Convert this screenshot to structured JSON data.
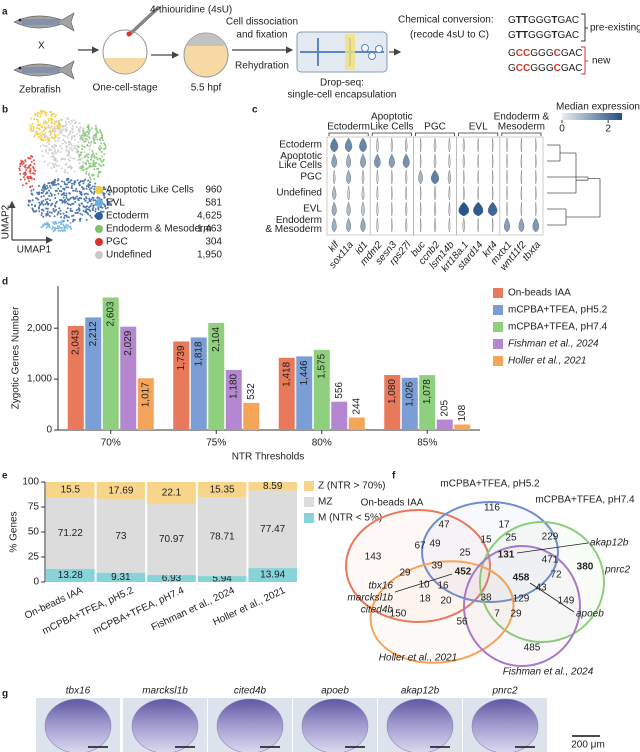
{
  "panel_labels": [
    "a",
    "b",
    "c",
    "d",
    "e",
    "f",
    "g"
  ],
  "workflow": {
    "reagent": "4-thiouridine (4sU)",
    "organism": "Zebrafish",
    "cross": "X",
    "stage1": "One-cell-stage",
    "stage2": "5.5 hpf",
    "step1": [
      "Cell dissociation",
      "and fixation"
    ],
    "step2": "Rehydration",
    "step3": [
      "Drop-seq:",
      "single-cell encapsulation"
    ],
    "step4": [
      "Chemical conversion:",
      "(recode 4sU to C)"
    ],
    "pre_existing": {
      "label": "pre-existing",
      "sequences": [
        "GTTGGGTGAC",
        "GTTGGGTGAC"
      ]
    },
    "new": {
      "label": "new",
      "sequences": [
        "GCCGGGCGAC",
        "GCCGGGCGAC"
      ]
    }
  },
  "umap": {
    "x_label": "UMAP1",
    "y_label": "UMAP2",
    "clusters": [
      {
        "name": "Apoptotic Like Cells",
        "count": "960",
        "color": "#f2cc3a"
      },
      {
        "name": "EVL",
        "count": "581",
        "color": "#6ab0de"
      },
      {
        "name": "Ectoderm",
        "count": "4,625",
        "color": "#2f5f9e"
      },
      {
        "name": "Endoderm & Mesoderm",
        "count": "1,463",
        "color": "#7cc46e"
      },
      {
        "name": "PGC",
        "count": "304",
        "color": "#d7342b"
      },
      {
        "name": "Undefined",
        "count": "1,950",
        "color": "#c8c8c8"
      }
    ]
  },
  "chart_data": [
    {
      "type": "violin",
      "colorbar_title": "Median expression",
      "colorbar_lim": [
        0,
        2.6
      ],
      "colorbar_ticks": [
        0,
        2
      ],
      "colors": [
        "#ececec",
        "#1d4f86"
      ],
      "groups": [
        [
          "Ectoderm"
        ],
        [
          "Apoptotic",
          "Like Cells"
        ],
        [
          "PGC"
        ],
        [
          "EVL"
        ],
        [
          "Endoderm &",
          "Mesoderm"
        ]
      ],
      "rows": [
        [
          "Ectoderm"
        ],
        [
          "Apoptotic",
          "Like Cells"
        ],
        [
          "PGC"
        ],
        [
          "Undefined"
        ],
        [
          "EVL"
        ],
        [
          "Endoderm",
          "& Mesoderm"
        ]
      ],
      "categories": [
        "klf",
        "sox11a",
        "id1",
        "mdm2",
        "sesn3",
        "rps27l",
        "buc",
        "ccnb2",
        "lsm14b",
        "krt18a.1",
        "stard14",
        "krt4",
        "mxtx1",
        "wnt11f2",
        "tbxta"
      ],
      "values": [
        [
          1.8,
          1.6,
          1.7,
          0.3,
          0.2,
          0.3,
          0,
          0.3,
          0.2,
          0.2,
          0,
          0,
          0,
          0,
          0
        ],
        [
          1.2,
          1.0,
          1.2,
          1.4,
          1.3,
          1.5,
          0,
          0.3,
          0.2,
          0.2,
          0,
          0,
          0,
          0,
          0
        ],
        [
          0.3,
          1.0,
          0.3,
          0.2,
          0.1,
          0.2,
          0.9,
          1.8,
          0.5,
          0,
          0,
          0,
          0,
          0,
          0
        ],
        [
          0.8,
          0.3,
          0.4,
          0.1,
          0,
          0.1,
          0,
          0.2,
          0.1,
          0.1,
          0,
          0,
          0,
          0,
          0
        ],
        [
          1.0,
          0.8,
          0.6,
          0.2,
          0,
          0.2,
          0,
          0.2,
          0.1,
          2.5,
          2.4,
          2.2,
          0,
          0,
          0
        ],
        [
          1.0,
          1.0,
          1.1,
          0.2,
          0,
          0.2,
          0,
          0.2,
          0.1,
          0.3,
          0,
          0,
          1.3,
          1.2,
          1.4
        ]
      ]
    },
    {
      "type": "bar",
      "y_label": "Zygotic Genes Number",
      "x_label": "NTR Thresholds",
      "categories": [
        "70%",
        "75%",
        "80%",
        "85%"
      ],
      "ylim": [
        0,
        2750
      ],
      "yticks": [
        0,
        {
          "value": 1000,
          "label": "1,000"
        },
        {
          "value": 2000,
          "label": "2,000"
        }
      ],
      "grid": false,
      "legend": "right",
      "series": [
        {
          "name": "On-beads IAA",
          "color": "#e8795a",
          "values": [
            2043,
            1739,
            1418,
            1080
          ],
          "value_labels": [
            "2,043",
            "1,739",
            "1,418",
            "1,080"
          ]
        },
        {
          "name": "mCPBA+TFEA, pH5.2",
          "color": "#7c9ed6",
          "values": [
            2212,
            1818,
            1446,
            1026
          ],
          "value_labels": [
            "2,212",
            "1,818",
            "1,446",
            "1,026"
          ]
        },
        {
          "name": "mCPBA+TFEA, pH7.4",
          "color": "#8fd07e",
          "values": [
            2603,
            2104,
            1575,
            1078
          ],
          "value_labels": [
            "2,603",
            "2,104",
            "1,575",
            "1,078"
          ]
        },
        {
          "name": "Fishman et al., 2024",
          "color": "#b487d0",
          "italic": true,
          "values": [
            2029,
            1180,
            556,
            205
          ],
          "value_labels": [
            "2,029",
            "1,180",
            "556",
            "205"
          ]
        },
        {
          "name": "Holler et al., 2021",
          "color": "#f5a55a",
          "italic": true,
          "values": [
            1017,
            532,
            244,
            108
          ],
          "value_labels": [
            "1,017",
            "532",
            "244",
            "108"
          ]
        }
      ]
    },
    {
      "type": "stacked_area",
      "y_label": "% Genes",
      "categories": [
        "On-beads IAA",
        "mCPBA+TFEA, pH5.2",
        "mCPBA+TFEA, pH7.4",
        "Fishman et al., 2024",
        "Holler et al., 2021"
      ],
      "ylim": [
        0,
        100
      ],
      "yticks": [
        0,
        25,
        50,
        75,
        100
      ],
      "legend": "right",
      "series": [
        {
          "name": "Z (NTR > 70%)",
          "color": "#f7d58a",
          "values": [
            15.5,
            17.69,
            22.1,
            15.35,
            8.59
          ]
        },
        {
          "name": "MZ",
          "color": "#dcdcdc",
          "values": [
            71.22,
            73,
            70.97,
            78.71,
            77.47
          ]
        },
        {
          "name": "M (NTR < 5%)",
          "color": "#86d3d8",
          "values": [
            13.28,
            9.31,
            6.93,
            5.94,
            13.94
          ]
        }
      ]
    }
  ],
  "venn": {
    "sets": [
      {
        "name": "On-beads IAA",
        "color": "#e8795a"
      },
      {
        "name": "mCPBA+TFEA, pH5.2",
        "color": "#6c8fd1"
      },
      {
        "name": "mCPBA+TFEA, pH7.4",
        "color": "#8ccf7a"
      },
      {
        "name": "Holler et al., 2021",
        "color": "#f5a55a",
        "italic": true
      },
      {
        "name": "Fishman et al., 2024",
        "color": "#a779c9",
        "italic": true
      }
    ],
    "regions": [
      {
        "count": 143
      },
      {
        "count": 116
      },
      {
        "count": 47
      },
      {
        "count": 17
      },
      {
        "count": 25
      },
      {
        "count": 229
      },
      {
        "count": 67
      },
      {
        "count": 49
      },
      {
        "count": 15
      },
      {
        "count": 25
      },
      {
        "count": 131,
        "highlight": true
      },
      {
        "count": 471
      },
      {
        "count": 380,
        "highlight": true
      },
      {
        "count": 39
      },
      {
        "count": 29
      },
      {
        "count": 452,
        "highlight": true
      },
      {
        "count": 458,
        "highlight": true
      },
      {
        "count": 72
      },
      {
        "count": 43
      },
      {
        "count": 10
      },
      {
        "count": 16
      },
      {
        "count": 18
      },
      {
        "count": 20
      },
      {
        "count": 38
      },
      {
        "count": 129
      },
      {
        "count": 149
      },
      {
        "count": 150
      },
      {
        "count": 56
      },
      {
        "count": 7
      },
      {
        "count": 29
      },
      {
        "count": 485
      }
    ],
    "genes": [
      "akap12b",
      "pnrc2",
      "apoeb",
      "tbx16",
      "marcksl1b",
      "cited4b"
    ]
  },
  "images": {
    "genes": [
      "tbx16",
      "marcksl1b",
      "cited4b",
      "apoeb",
      "akap12b",
      "pnrc2"
    ],
    "scale_bar": "200 μm"
  }
}
